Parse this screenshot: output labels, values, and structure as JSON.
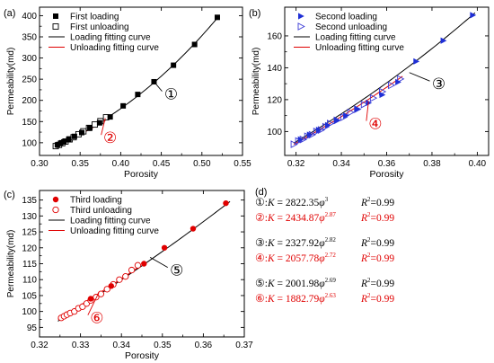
{
  "colors": {
    "loading": "#000000",
    "unloading": "#e00000",
    "second_marker": "#1f2fd6",
    "second_unload": "#3b3bd6",
    "third_marker": "#e00000"
  },
  "chart_data": [
    {
      "type": "scatter",
      "panel": "(a)",
      "xlabel": "Porosity",
      "ylabel": "Permeability(md)",
      "xlim": [
        0.3,
        0.55
      ],
      "ylim": [
        70,
        420
      ],
      "xticks": [
        "0.30",
        "0.35",
        "0.40",
        "0.45",
        "0.50",
        "0.55"
      ],
      "xtick_values": [
        0.3,
        0.35,
        0.4,
        0.45,
        0.5,
        0.55
      ],
      "yticks": [
        "100",
        "150",
        "200",
        "250",
        "300",
        "350",
        "400"
      ],
      "ytick_values": [
        100,
        150,
        200,
        250,
        300,
        350,
        400
      ],
      "legend": [
        "First loading",
        "First unloading",
        "Loading fitting curve",
        "Unloading fitting curve"
      ],
      "legend_position": "top-left",
      "loading_points": {
        "x": [
          0.322,
          0.326,
          0.33,
          0.336,
          0.343,
          0.352,
          0.362,
          0.374,
          0.387,
          0.403,
          0.421,
          0.441,
          0.465,
          0.491,
          0.519
        ],
        "y": [
          95,
          99,
          102,
          108,
          115,
          124,
          135,
          147,
          161,
          187,
          214,
          244,
          283,
          332,
          396
        ]
      },
      "unloading_points": {
        "x": [
          0.32,
          0.324,
          0.328,
          0.332,
          0.337,
          0.342,
          0.348,
          0.354,
          0.361,
          0.368,
          0.375,
          0.382
        ],
        "y": [
          92,
          95,
          99,
          103,
          108,
          113,
          120,
          127,
          135,
          143,
          151,
          160
        ]
      },
      "loading_fit": {
        "coef": 2822.35,
        "exponent": 3.0,
        "x_range": [
          0.32,
          0.52
        ]
      },
      "unloading_fit": {
        "coef": 2434.87,
        "exponent": 2.87,
        "x_range": [
          0.32,
          0.385
        ]
      },
      "callouts": [
        {
          "label": "①",
          "color": "#000000",
          "x": 0.462,
          "y": 215,
          "target_x": 0.441,
          "target_y": 244
        },
        {
          "label": "②",
          "color": "#e00000",
          "x": 0.387,
          "y": 112,
          "target_x": 0.381,
          "target_y": 158
        }
      ]
    },
    {
      "type": "scatter",
      "panel": "(b)",
      "xlabel": "Porosity",
      "ylabel": "Permeability(md)",
      "xlim": [
        0.315,
        0.405
      ],
      "ylim": [
        85,
        178
      ],
      "xticks": [
        "0.32",
        "0.34",
        "0.36",
        "0.38",
        "0.40"
      ],
      "xtick_values": [
        0.32,
        0.34,
        0.36,
        0.38,
        0.4
      ],
      "yticks": [
        "100",
        "120",
        "140",
        "160"
      ],
      "ytick_values": [
        100,
        120,
        140,
        160
      ],
      "legend": [
        "Second loading",
        "Second unloading",
        "Loading fitting curve",
        "Unloading fitting curve"
      ],
      "legend_position": "top-left",
      "loading_points": {
        "x": [
          0.322,
          0.326,
          0.33,
          0.334,
          0.338,
          0.342,
          0.347,
          0.352,
          0.358,
          0.365,
          0.373,
          0.385,
          0.398
        ],
        "y": [
          95,
          98,
          101,
          104,
          107,
          110,
          114,
          118,
          123,
          131,
          144,
          157,
          173
        ]
      },
      "unloading_points": {
        "x": [
          0.319,
          0.321,
          0.323,
          0.325,
          0.327,
          0.329,
          0.331,
          0.333,
          0.335,
          0.338,
          0.341,
          0.344,
          0.347,
          0.35,
          0.354,
          0.358,
          0.362,
          0.366
        ],
        "y": [
          92,
          94,
          95,
          97,
          98,
          100,
          101,
          103,
          105,
          107,
          109,
          112,
          114,
          117,
          121,
          125,
          129,
          133
        ]
      },
      "loading_fit": {
        "coef": 2327.92,
        "exponent": 2.82,
        "x_range": [
          0.319,
          0.399
        ]
      },
      "unloading_fit": {
        "coef": 2057.78,
        "exponent": 2.72,
        "x_range": [
          0.319,
          0.367
        ]
      },
      "callouts": [
        {
          "label": "③",
          "color": "#000000",
          "x": 0.383,
          "y": 130,
          "target_x": 0.37,
          "target_y": 137
        },
        {
          "label": "④",
          "color": "#e00000",
          "x": 0.355,
          "y": 105,
          "target_x": 0.352,
          "target_y": 119
        }
      ]
    },
    {
      "type": "scatter",
      "panel": "(c)",
      "xlabel": "Porosity",
      "ylabel": "Permeability(md)",
      "xlim": [
        0.32,
        0.37
      ],
      "ylim": [
        92,
        138
      ],
      "xticks": [
        "0.32",
        "0.33",
        "0.34",
        "0.35",
        "0.36",
        "0.37"
      ],
      "xtick_values": [
        0.32,
        0.33,
        0.34,
        0.35,
        0.36,
        0.37
      ],
      "yticks": [
        "95",
        "100",
        "105",
        "110",
        "115",
        "120",
        "125",
        "130",
        "135"
      ],
      "ytick_values": [
        95,
        100,
        105,
        110,
        115,
        120,
        125,
        130,
        135
      ],
      "legend": [
        "Third loading",
        "Third unloading",
        "Loading fitting curve",
        "Unloading fitting curve"
      ],
      "legend_position": "top-left",
      "loading_points": {
        "x": [
          0.3325,
          0.3375,
          0.3455,
          0.3505,
          0.3575,
          0.3655
        ],
        "y": [
          104,
          108,
          115,
          120,
          126,
          134
        ]
      },
      "unloading_points": {
        "x": [
          0.3253,
          0.326,
          0.3267,
          0.3275,
          0.3285,
          0.3295,
          0.3305,
          0.3315,
          0.3325,
          0.3338,
          0.335,
          0.3365,
          0.338,
          0.3395,
          0.341,
          0.3425,
          0.344
        ],
        "y": [
          98,
          98.5,
          99,
          99.5,
          100,
          101,
          101.5,
          102.5,
          103.5,
          104.5,
          105.5,
          107,
          108.5,
          110,
          111,
          113,
          114.5
        ]
      },
      "loading_fit": {
        "coef": 2001.98,
        "exponent": 2.69,
        "x_range": [
          0.3245,
          0.3665
        ]
      },
      "unloading_fit": {
        "coef": 1882.79,
        "exponent": 2.63,
        "x_range": [
          0.3245,
          0.3445
        ]
      },
      "callouts": [
        {
          "label": "⑤",
          "color": "#000000",
          "x": 0.3535,
          "y": 113,
          "target_x": 0.347,
          "target_y": 117
        },
        {
          "label": "⑥",
          "color": "#e00000",
          "x": 0.334,
          "y": 98,
          "target_x": 0.3345,
          "target_y": 106
        }
      ]
    }
  ],
  "panel_d": {
    "label": "(d)",
    "rows": [
      {
        "circle": "①",
        "coef": "2822.35",
        "exp": "3",
        "r2": "0.99",
        "color": "#000000"
      },
      {
        "circle": "②",
        "coef": "2434.87",
        "exp": "2.87",
        "r2": "0.99",
        "color": "#e00000"
      },
      {
        "circle": "③",
        "coef": "2327.92",
        "exp": "2.82",
        "r2": "0.99",
        "color": "#000000"
      },
      {
        "circle": "④",
        "coef": "2057.78",
        "exp": "2.72",
        "r2": "0.99",
        "color": "#e00000"
      },
      {
        "circle": "⑤",
        "coef": "2001.98",
        "exp": "2.69",
        "r2": "0.99",
        "color": "#000000"
      },
      {
        "circle": "⑥",
        "coef": "1882.79",
        "exp": "2.63",
        "r2": "0.99",
        "color": "#e00000"
      }
    ],
    "k_symbol": "K",
    "phi_symbol": "φ",
    "r2_symbol": "R",
    "r2_sup": "2"
  }
}
